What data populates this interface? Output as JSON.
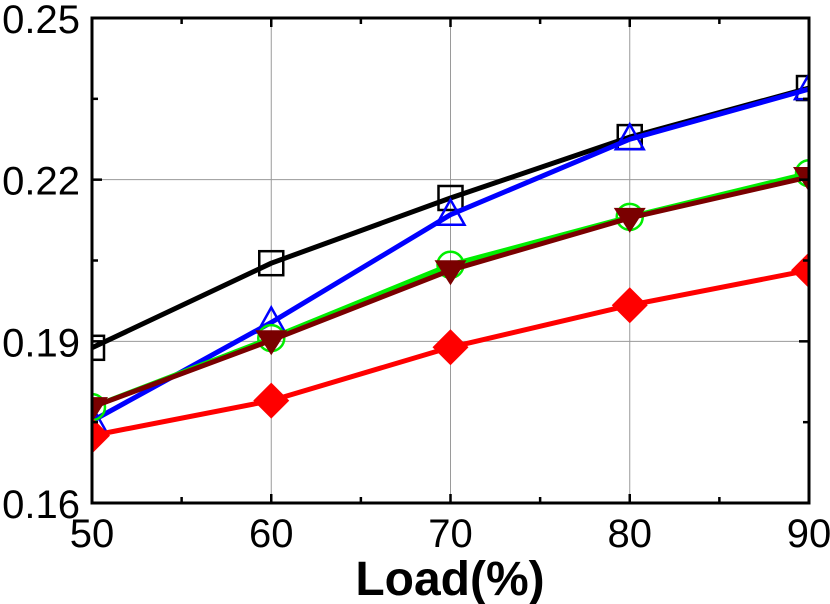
{
  "chart_data": {
    "type": "line",
    "title": "",
    "xlabel": "Load(%)",
    "ylabel": "",
    "x": [
      50,
      60,
      70,
      80,
      90
    ],
    "xlim": [
      50,
      90
    ],
    "ylim": [
      0.16,
      0.25
    ],
    "xticks": [
      "50",
      "60",
      "70",
      "80",
      "90"
    ],
    "yticks": [
      "0.16",
      "0.19",
      "0.22",
      "0.25"
    ],
    "grid": true,
    "legend": null,
    "series": [
      {
        "name": "black-square",
        "color": "#000000",
        "marker": "square-open",
        "values": [
          0.1888,
          0.2045,
          0.2166,
          0.2279,
          0.237
        ]
      },
      {
        "name": "blue-triangle-up",
        "color": "#0000ff",
        "marker": "triangle-up-open",
        "values": [
          0.1752,
          0.1935,
          0.2135,
          0.2275,
          0.2368
        ]
      },
      {
        "name": "green-circle",
        "color": "#00ee00",
        "marker": "circle-open",
        "values": [
          0.1778,
          0.1906,
          0.2042,
          0.2131,
          0.2212
        ]
      },
      {
        "name": "brown-triangle-down",
        "color": "#7a0000",
        "marker": "triangle-down-filled",
        "values": [
          0.1778,
          0.1902,
          0.2032,
          0.2129,
          0.2205
        ]
      },
      {
        "name": "red-diamond",
        "color": "#ff0000",
        "marker": "diamond-filled",
        "values": [
          0.1725,
          0.179,
          0.1889,
          0.1967,
          0.2032
        ]
      }
    ]
  },
  "axes": {
    "x_title": "Load(%)",
    "x_ticks": [
      "50",
      "60",
      "70",
      "80",
      "90"
    ],
    "y_ticks": [
      "0.16",
      "0.19",
      "0.22",
      "0.25"
    ]
  }
}
